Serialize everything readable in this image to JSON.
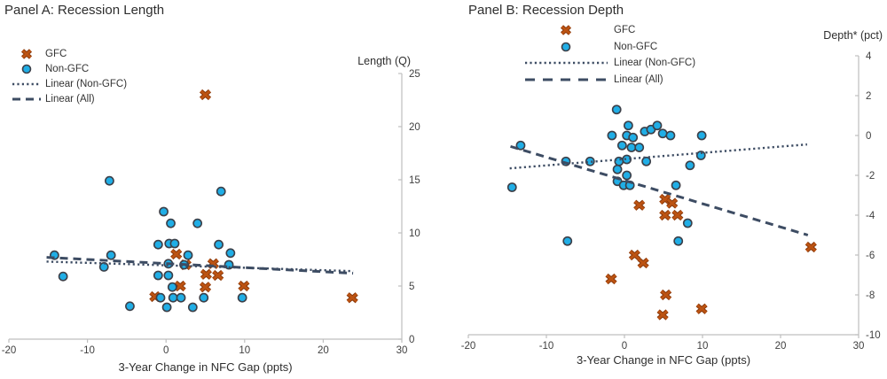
{
  "colors": {
    "gfc": "#BC5312",
    "gfc_edge": "#87370A",
    "non_gfc_fill": "#20AEE6",
    "non_gfc_edge": "#3C4049",
    "trend": "#3D4C63",
    "axis": "#BFBFBF",
    "tick_text": "#404040",
    "title_text": "#2E2E2E"
  },
  "chart_data": [
    {
      "type": "scatter",
      "title": "Panel A: Recession Length",
      "xlabel": "3-Year Change in NFC Gap (ppts)",
      "ylabel": "Length (Q)",
      "xlim": [
        -20,
        30
      ],
      "ylim": [
        0,
        25
      ],
      "xticks": [
        -20,
        -10,
        0,
        10,
        20,
        30
      ],
      "yticks": [
        0,
        5,
        10,
        15,
        20,
        25
      ],
      "legend_position": "upper-left",
      "grid": false,
      "series": [
        {
          "name": "GFC",
          "marker": "x",
          "points": [
            [
              5,
              23
            ],
            [
              1.3,
              8
            ],
            [
              2.5,
              7
            ],
            [
              6,
              7.1
            ],
            [
              5.1,
              6.1
            ],
            [
              6.6,
              6
            ],
            [
              1.8,
              5
            ],
            [
              5,
              4.9
            ],
            [
              9.9,
              5
            ],
            [
              -1.4,
              4
            ],
            [
              23.7,
              3.9
            ]
          ]
        },
        {
          "name": "Non-GFC",
          "marker": "circle",
          "points": [
            [
              -14.2,
              7.9
            ],
            [
              -13.1,
              5.9
            ],
            [
              -7.9,
              6.8
            ],
            [
              -7,
              7.9
            ],
            [
              -7.2,
              14.9
            ],
            [
              -4.6,
              3.1
            ],
            [
              -1,
              8.9
            ],
            [
              -1,
              6
            ],
            [
              -0.7,
              3.9
            ],
            [
              -0.3,
              12
            ],
            [
              0.4,
              9
            ],
            [
              1.1,
              9
            ],
            [
              0.3,
              7.1
            ],
            [
              0.3,
              6
            ],
            [
              0.1,
              3
            ],
            [
              0.6,
              10.9
            ],
            [
              0.8,
              4.9
            ],
            [
              0.9,
              3.9
            ],
            [
              1.9,
              3.9
            ],
            [
              2.3,
              7
            ],
            [
              2.8,
              7.9
            ],
            [
              3.4,
              3
            ],
            [
              4,
              10.9
            ],
            [
              4.8,
              3.9
            ],
            [
              6.7,
              8.9
            ],
            [
              7,
              13.9
            ],
            [
              8.2,
              8.1
            ],
            [
              8,
              7
            ],
            [
              9.7,
              3.9
            ]
          ]
        },
        {
          "name": "Linear (Non-GFC)",
          "style": "dotted",
          "line": [
            [
              -15.2,
              7.3
            ],
            [
              23.8,
              6.4
            ]
          ]
        },
        {
          "name": "Linear (All)",
          "style": "dashed",
          "line": [
            [
              -15.2,
              7.7
            ],
            [
              23.8,
              6.2
            ]
          ]
        }
      ]
    },
    {
      "type": "scatter",
      "title": "Panel B: Recession Depth",
      "xlabel": "3-Year Change in NFC Gap (ppts)",
      "ylabel": "Depth* (pct)",
      "xlim": [
        -20,
        30
      ],
      "ylim": [
        -10,
        4
      ],
      "xticks": [
        -20,
        -10,
        0,
        10,
        20,
        30
      ],
      "yticks": [
        4,
        2,
        0,
        -2,
        -4,
        -6,
        -8,
        -10
      ],
      "legend_position": "upper-left",
      "grid": false,
      "series": [
        {
          "name": "GFC",
          "marker": "x",
          "points": [
            [
              1.9,
              -3.5
            ],
            [
              5.2,
              -3.2
            ],
            [
              6.1,
              -3.4
            ],
            [
              5.2,
              -4
            ],
            [
              6.8,
              -4
            ],
            [
              1.3,
              -6
            ],
            [
              2.4,
              -6.4
            ],
            [
              -1.7,
              -7.2
            ],
            [
              5.3,
              -8
            ],
            [
              9.9,
              -8.7
            ],
            [
              4.9,
              -9
            ],
            [
              23.9,
              -5.6
            ]
          ]
        },
        {
          "name": "Non-GFC",
          "marker": "circle",
          "points": [
            [
              -14.4,
              -2.6
            ],
            [
              -13.3,
              -0.5
            ],
            [
              -7.5,
              -1.3
            ],
            [
              -7.3,
              -5.3
            ],
            [
              -4.4,
              -1.3
            ],
            [
              -1.6,
              0
            ],
            [
              -1,
              1.3
            ],
            [
              -0.9,
              -1.7
            ],
            [
              -0.9,
              -2.3
            ],
            [
              -0.7,
              -1.3
            ],
            [
              -0.3,
              -0.5
            ],
            [
              -0.1,
              -2.5
            ],
            [
              0.3,
              0
            ],
            [
              0.3,
              -1.2
            ],
            [
              0.3,
              -2
            ],
            [
              0.5,
              0.5
            ],
            [
              0.7,
              -2.5
            ],
            [
              0.9,
              -0.6
            ],
            [
              1.1,
              -0.1
            ],
            [
              1.9,
              -0.6
            ],
            [
              2.6,
              0.2
            ],
            [
              2.8,
              -1.3
            ],
            [
              3.4,
              0.3
            ],
            [
              4.2,
              0.5
            ],
            [
              4.9,
              0.1
            ],
            [
              5.9,
              0
            ],
            [
              6.6,
              -2.5
            ],
            [
              6.9,
              -5.3
            ],
            [
              8.1,
              -4.4
            ],
            [
              8.4,
              -1.5
            ],
            [
              9.8,
              -1
            ],
            [
              9.9,
              0
            ]
          ]
        },
        {
          "name": "Linear (Non-GFC)",
          "style": "dotted",
          "line": [
            [
              -14.7,
              -1.65
            ],
            [
              23.4,
              -0.45
            ]
          ]
        },
        {
          "name": "Linear (All)",
          "style": "dashed",
          "line": [
            [
              -14.6,
              -0.55
            ],
            [
              23.5,
              -5
            ]
          ]
        }
      ]
    }
  ]
}
